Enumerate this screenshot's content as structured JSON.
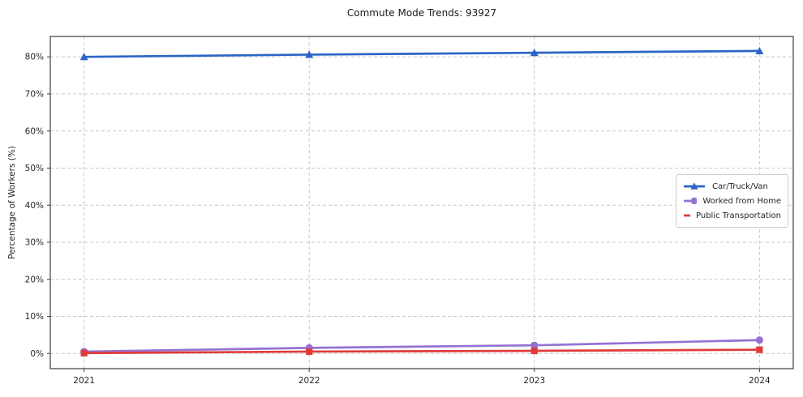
{
  "chart_data": {
    "type": "line",
    "title": "Commute Mode Trends: 93927",
    "xlabel": "",
    "ylabel": "Percentage of Workers (%)",
    "x": [
      2021,
      2022,
      2023,
      2024
    ],
    "xtick_labels": [
      "2021",
      "2022",
      "2023",
      "2024"
    ],
    "yticks": [
      0,
      10,
      20,
      30,
      40,
      50,
      60,
      70,
      80
    ],
    "ytick_labels": [
      "0%",
      "10%",
      "20%",
      "30%",
      "40%",
      "50%",
      "60%",
      "70%",
      "80%"
    ],
    "xlim": [
      2020.85,
      2024.15
    ],
    "ylim": [
      -4.1,
      85.5
    ],
    "grid": true,
    "grid_style": "dashed",
    "legend_position": "center right",
    "series": [
      {
        "name": "Car/Truck/Van",
        "marker": "triangle",
        "color": "#2b65c6",
        "values": [
          80.0,
          80.6,
          81.1,
          81.6
        ]
      },
      {
        "name": "Worked from Home",
        "marker": "circle",
        "color": "#9472d4",
        "values": [
          0.5,
          1.5,
          2.2,
          3.6
        ]
      },
      {
        "name": "Public Transportation",
        "marker": "square",
        "color": "#df3b3b",
        "values": [
          0.1,
          0.5,
          0.7,
          1.0
        ]
      }
    ],
    "colors": {
      "grid": "#c9c9c9",
      "frame": "#3c3c3c",
      "text": "#262626",
      "background": "#ffffff"
    }
  }
}
